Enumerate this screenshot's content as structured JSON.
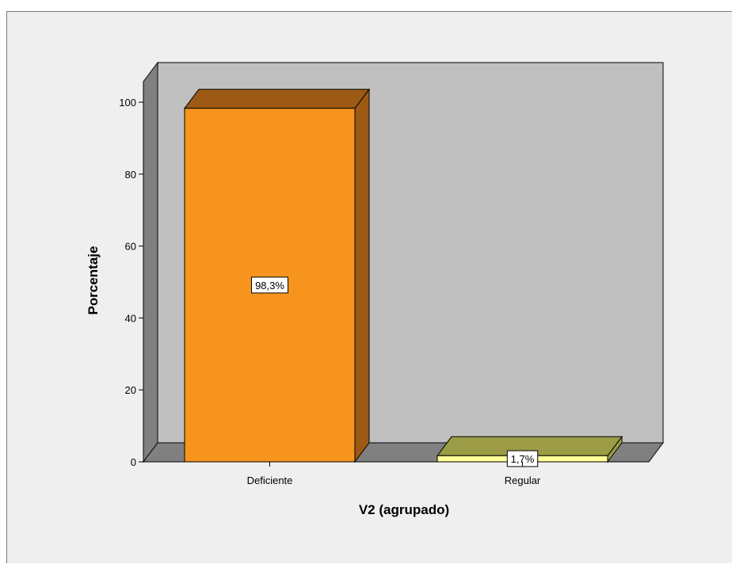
{
  "chart_data": {
    "type": "bar",
    "style": "3d",
    "title": "",
    "xlabel": "V2 (agrupado)",
    "ylabel": "Porcentaje",
    "categories": [
      "Deficiente",
      "Regular"
    ],
    "values": [
      98.3,
      1.7
    ],
    "data_labels": [
      "98,3%",
      "1,7%"
    ],
    "ylim": [
      0,
      100
    ],
    "yticks": [
      0,
      20,
      40,
      60,
      80,
      100
    ],
    "grid": false,
    "legend": "none",
    "colors": {
      "bar_fronts": [
        "#f7941d",
        "#ffff99"
      ],
      "bar_tops": [
        "#9c5a14",
        "#9c9c46"
      ],
      "bar_sides": [
        "#9c5a14",
        "#9c9c46"
      ],
      "back_wall": "#c0c0c0",
      "side_wall": "#808080",
      "floor": "#808080",
      "background": "#efefef"
    }
  }
}
